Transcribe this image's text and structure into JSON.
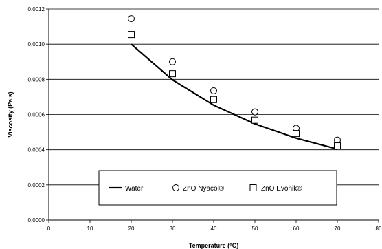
{
  "chart_data": {
    "type": "line",
    "xlabel": "Temperature (°C)",
    "ylabel": "Viscosity (Pa.s)",
    "xlim": [
      0,
      80
    ],
    "ylim": [
      0,
      0.0012
    ],
    "x_ticks": [
      "0",
      "10",
      "20",
      "30",
      "40",
      "50",
      "60",
      "70",
      "80"
    ],
    "y_ticks": [
      "0.0000",
      "0.0002",
      "0.0004",
      "0.0006",
      "0.0008",
      "0.0010",
      "0.0012"
    ],
    "grid": "horizontal",
    "legend_position": "bottom-center",
    "series": [
      {
        "name": "Water",
        "style": "line",
        "x": [
          20,
          30,
          40,
          50,
          60,
          70
        ],
        "y": [
          0.001,
          0.000797,
          0.000653,
          0.000547,
          0.000466,
          0.000404
        ]
      },
      {
        "name": "ZnO Nyacol®",
        "style": "circle-marker",
        "x": [
          20,
          30,
          40,
          50,
          60,
          70
        ],
        "y": [
          0.001145,
          0.0009,
          0.000735,
          0.000615,
          0.000522,
          0.000455
        ]
      },
      {
        "name": "ZnO Evonik®",
        "style": "square-marker",
        "x": [
          20,
          30,
          40,
          50,
          60,
          70
        ],
        "y": [
          0.001055,
          0.000832,
          0.000685,
          0.000568,
          0.000492,
          0.000422
        ]
      }
    ]
  }
}
